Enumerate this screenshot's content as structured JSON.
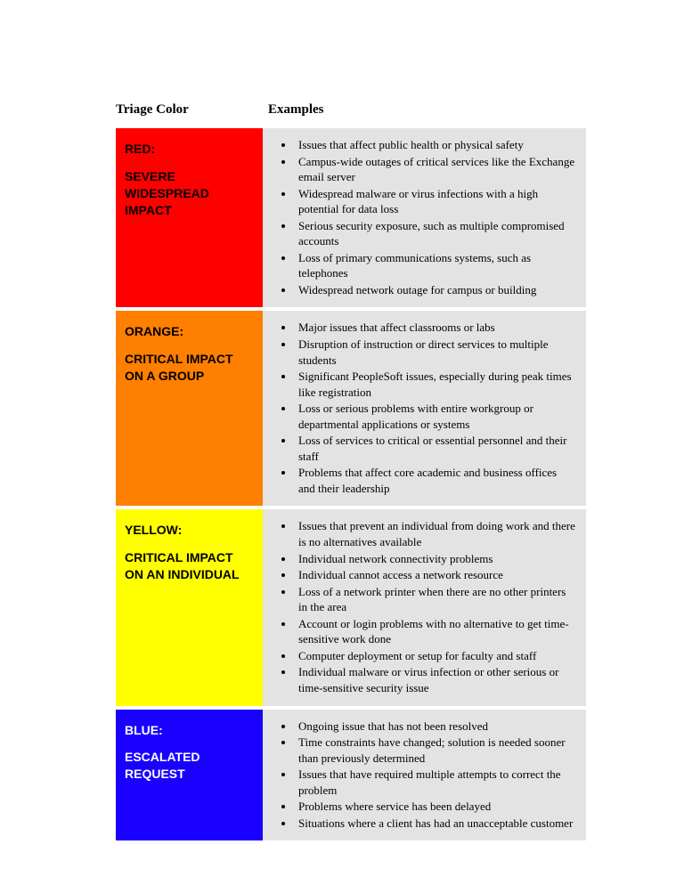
{
  "headers": {
    "left": "Triage Color",
    "right": "Examples"
  },
  "rows": [
    {
      "id": "red",
      "bg_color": "#ff0000",
      "text_color": "#000000",
      "title": "RED:",
      "subtitle": "SEVERE WIDESPREAD IMPACT",
      "examples": [
        "Issues that affect public health or physical safety",
        "Campus-wide outages of critical services like the Exchange email server",
        "Widespread malware or virus infections with a high potential for data loss",
        "Serious security exposure, such as multiple compromised accounts",
        "Loss of primary communications systems, such as telephones",
        "Widespread network outage for campus or building"
      ]
    },
    {
      "id": "orange",
      "bg_color": "#ff7f00",
      "text_color": "#000000",
      "title": "ORANGE:",
      "subtitle": "CRITICAL IMPACT ON A GROUP",
      "examples": [
        "Major issues that affect classrooms or labs",
        "Disruption of instruction or direct services to multiple students",
        "Significant PeopleSoft issues, especially during peak times like registration",
        "Loss or serious problems with entire workgroup or departmental applications or systems",
        "Loss of services to critical or essential personnel and their staff",
        "Problems that affect core academic and business offices and their leadership"
      ]
    },
    {
      "id": "yellow",
      "bg_color": "#ffff00",
      "text_color": "#000000",
      "title": "YELLOW:",
      "subtitle": "CRITICAL IMPACT ON AN INDIVIDUAL",
      "examples": [
        "Issues that prevent an individual from doing work and there is no alternatives available",
        "Individual network connectivity problems",
        "Individual cannot access a network resource",
        "Loss of a network printer when there are no other printers in the area",
        "Account or login problems with no alternative to get time-sensitive work done",
        "Computer deployment or setup for faculty and staff",
        "Individual malware or virus infection or other serious or time-sensitive security issue"
      ]
    },
    {
      "id": "blue",
      "bg_color": "#1a00ff",
      "text_color": "#ffffff",
      "title": "BLUE:",
      "subtitle": "ESCALATED REQUEST",
      "examples": [
        "Ongoing issue that has not been resolved",
        "Time constraints have changed; solution is needed sooner than previously determined",
        "Issues that have required multiple attempts to correct the problem",
        "Problems where service has been delayed",
        "Situations where a client has had an unacceptable customer"
      ]
    }
  ]
}
